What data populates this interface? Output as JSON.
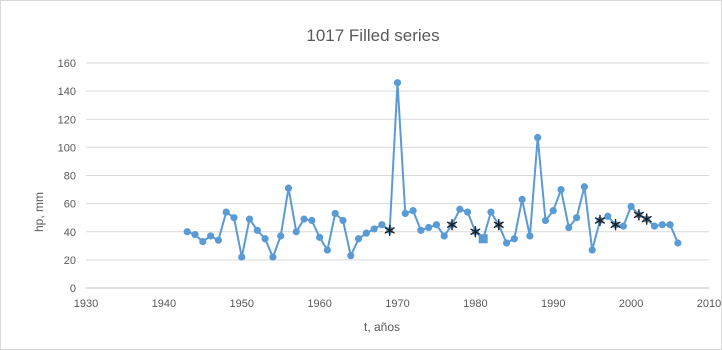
{
  "chart_data": {
    "type": "line",
    "title": "1017 Filled series",
    "xlabel": "t, años",
    "ylabel": "hp, mm",
    "xlim": [
      1930,
      2010
    ],
    "ylim": [
      0,
      160
    ],
    "x_ticks": [
      1930,
      1940,
      1950,
      1960,
      1970,
      1980,
      1990,
      2000,
      2010
    ],
    "y_ticks": [
      0,
      20,
      40,
      60,
      80,
      100,
      120,
      140,
      160
    ],
    "grid": "horizontal",
    "legend": "none",
    "colors": {
      "series": "#5b9bd5",
      "filled_marker": "#1f1f1f"
    },
    "series": [
      {
        "marker": "circle",
        "x": [
          1943,
          1944,
          1945,
          1946,
          1947,
          1948,
          1949,
          1950,
          1951,
          1952,
          1953,
          1954,
          1955,
          1956,
          1957,
          1958,
          1959,
          1960,
          1961,
          1962,
          1963,
          1964,
          1965,
          1966,
          1967,
          1968,
          1969,
          1970,
          1971,
          1972,
          1973,
          1974,
          1975,
          1976,
          1977,
          1978,
          1979,
          1980,
          1981,
          1982,
          1983,
          1984,
          1985,
          1986,
          1987,
          1988,
          1989,
          1990,
          1991,
          1992,
          1993,
          1994,
          1995,
          1996,
          1997,
          1998,
          1999,
          2000,
          2001,
          2002,
          2003,
          2004,
          2005,
          2006
        ],
        "y": [
          40,
          38,
          33,
          37,
          34,
          54,
          50,
          22,
          49,
          41,
          35,
          22,
          37,
          71,
          40,
          49,
          48,
          36,
          27,
          53,
          48,
          23,
          35,
          39,
          42,
          45,
          41,
          146,
          53,
          55,
          41,
          43,
          45,
          37,
          45,
          56,
          54,
          40,
          35,
          54,
          45,
          32,
          35,
          63,
          37,
          107,
          48,
          55,
          70,
          43,
          50,
          72,
          27,
          48,
          51,
          45,
          44,
          58,
          52,
          49,
          44,
          45,
          45,
          32
        ]
      }
    ],
    "filled_points": [
      {
        "x": 1969,
        "y": 41,
        "marker": "asterisk"
      },
      {
        "x": 1977,
        "y": 45,
        "marker": "asterisk"
      },
      {
        "x": 1980,
        "y": 40,
        "marker": "asterisk"
      },
      {
        "x": 1981,
        "y": 35,
        "marker": "square"
      },
      {
        "x": 1983,
        "y": 45,
        "marker": "asterisk"
      },
      {
        "x": 1996,
        "y": 48,
        "marker": "asterisk"
      },
      {
        "x": 1998,
        "y": 45,
        "marker": "asterisk"
      },
      {
        "x": 2001,
        "y": 52,
        "marker": "asterisk"
      },
      {
        "x": 2002,
        "y": 49,
        "marker": "asterisk"
      }
    ]
  }
}
